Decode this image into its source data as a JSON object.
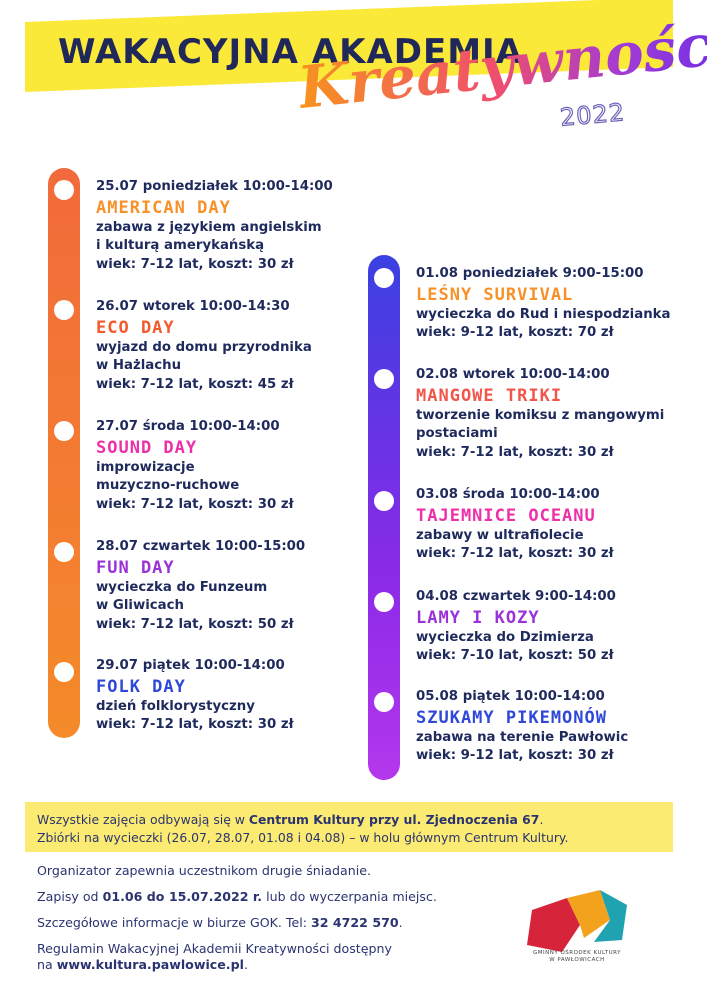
{
  "header": {
    "title_line1": "WAKACYJNA AKADEMIA",
    "title_line2": "Kreatywności",
    "year": "2022"
  },
  "left_column": [
    {
      "date": "25.07 poniedziałek 10:00-14:00",
      "name": "AMERICAN DAY",
      "name_color": "#f7922a",
      "desc": "zabawa z językiem angielskim\ni kulturą amerykańską",
      "meta": "wiek: 7-12 lat, koszt: 30 zł"
    },
    {
      "date": "26.07 wtorek 10:00-14:30",
      "name": "ECO DAY",
      "name_color": "#f25a2c",
      "desc": "wyjazd do domu przyrodnika\nw Hażlachu",
      "meta": "wiek: 7-12 lat, koszt: 45 zł"
    },
    {
      "date": "27.07 środa 10:00-14:00",
      "name": "SOUND DAY",
      "name_color": "#ee2fa8",
      "desc": "improwizacje\nmuzyczno-ruchowe",
      "meta": "wiek: 7-12 lat, koszt: 30 zł"
    },
    {
      "date": "28.07 czwartek 10:00-15:00",
      "name": "FUN DAY",
      "name_color": "#9b32d8",
      "desc": "wycieczka do Funzeum\nw Gliwicach",
      "meta": "wiek: 7-12 lat, koszt: 50 zł"
    },
    {
      "date": "29.07 piątek 10:00-14:00",
      "name": "FOLK DAY",
      "name_color": "#2f48d8",
      "desc": "dzień folklorystyczny",
      "meta": "wiek: 7-12 lat, koszt: 30 zł"
    }
  ],
  "right_column": [
    {
      "date": "01.08 poniedziałek 9:00-15:00",
      "name": "LEŚNY SURVIVAL",
      "name_color": "#f7922a",
      "desc": "wycieczka do Rud i niespodzianka",
      "meta": "wiek: 9-12 lat, koszt: 70 zł"
    },
    {
      "date": "02.08 wtorek 10:00-14:00",
      "name": "MANGOWE TRIKI",
      "name_color": "#f2554a",
      "desc": "tworzenie komiksu z mangowymi\npostaciami",
      "meta": "wiek: 7-12 lat, koszt: 30 zł"
    },
    {
      "date": "03.08 środa 10:00-14:00",
      "name": "TAJEMNICE OCEANU",
      "name_color": "#ee2fa8",
      "desc": "zabawy w ultrafiolecie",
      "meta": "wiek: 7-12 lat, koszt: 30 zł"
    },
    {
      "date": "04.08 czwartek 9:00-14:00",
      "name": "LAMY I KOZY",
      "name_color": "#9b32d8",
      "desc": "wycieczka do Dzimierza",
      "meta": "wiek: 7-10 lat, koszt: 50 zł"
    },
    {
      "date": "05.08 piątek 10:00-14:00",
      "name": "SZUKAMY PIKEMONÓW",
      "name_color": "#2f48d8",
      "desc": "zabawa na terenie Pawłowic",
      "meta": "wiek: 9-12 lat, koszt: 30 zł"
    }
  ],
  "info": {
    "line1_pre": "Wszystkie zajęcia odbywają się w ",
    "line1_bold": "Centrum Kultury przy ul. Zjednoczenia 67",
    "line1_post": ".",
    "line2": "Zbiórki na wycieczki (26.07, 28.07, 01.08 i 04.08) – w holu głównym Centrum Kultury."
  },
  "footer": {
    "breakfast": "Organizator zapewnia uczestnikom drugie śniadanie.",
    "signup_pre": "Zapisy od ",
    "signup_bold": "01.06 do 15.07.2022 r.",
    "signup_post": " lub do wyczerpania miejsc.",
    "details_pre": "Szczegółowe informacje w biurze GOK. Tel: ",
    "details_bold": "32 4722 570",
    "details_post": ".",
    "rules_line1": "Regulamin Wakacyjnej Akademii Kreatywności dostępny",
    "rules_pre": "na ",
    "rules_bold": "www.kultura.pawlowice.pl",
    "rules_post": "."
  },
  "logo": {
    "text_line1": "GMINNY OŚRODEK KULTURY",
    "text_line2": "W PAWŁOWICACH",
    "colors": [
      "#d6243a",
      "#f3a21e",
      "#1fa3b0"
    ]
  }
}
